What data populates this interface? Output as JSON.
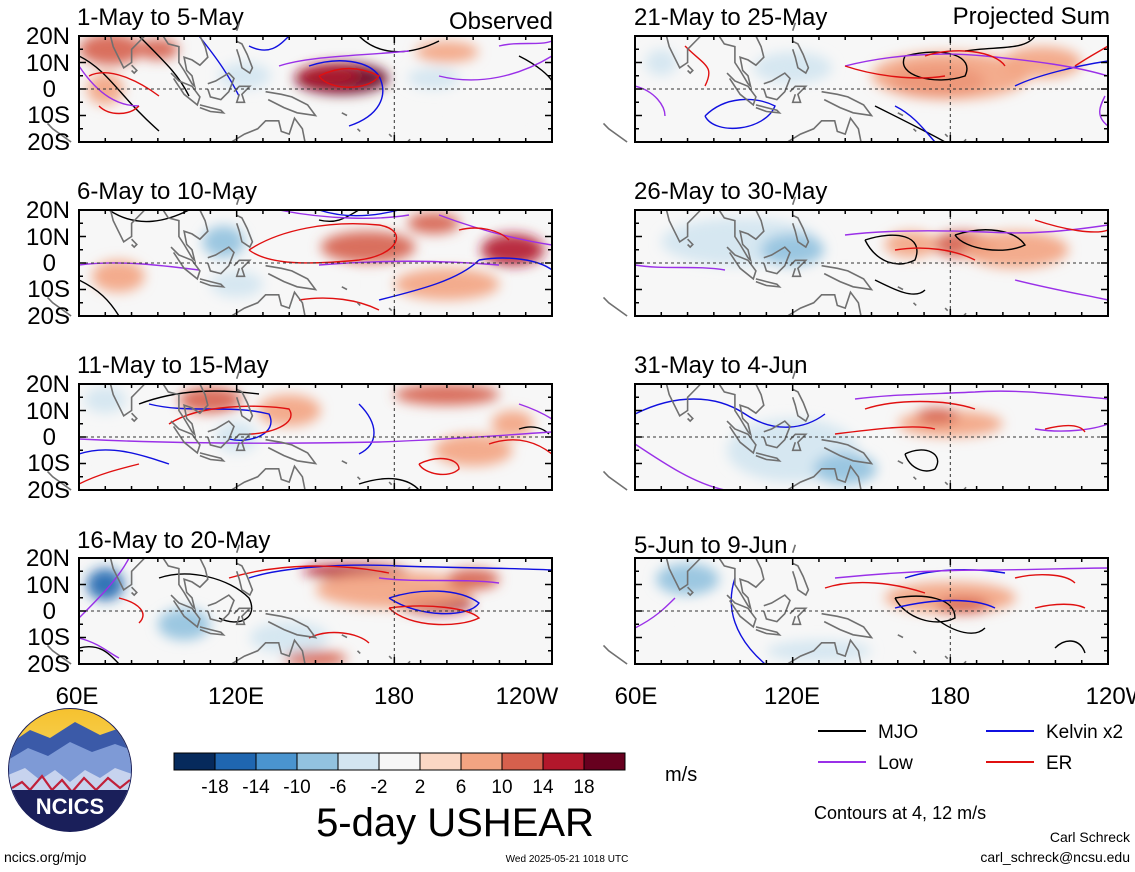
{
  "header": {
    "observed_label": "Observed",
    "projected_label": "Projected Sum"
  },
  "panels": [
    {
      "id": "p1",
      "title": "1-May to 5-May",
      "blobs": [
        {
          "x": 160,
          "y": 4,
          "rx": 18,
          "ry": 6,
          "v": 18
        },
        {
          "x": 155,
          "y": 5,
          "rx": 12,
          "ry": 4,
          "v": 14
        },
        {
          "x": 72,
          "y": 15,
          "rx": 12,
          "ry": 6,
          "v": 10
        },
        {
          "x": 90,
          "y": 15,
          "rx": 8,
          "ry": 4,
          "v": 10
        },
        {
          "x": 70,
          "y": 0,
          "rx": 7,
          "ry": 6,
          "v": 6
        },
        {
          "x": 123,
          "y": 5,
          "rx": 10,
          "ry": 5,
          "v": -6
        },
        {
          "x": 195,
          "y": 4,
          "rx": 10,
          "ry": 4,
          "v": -6
        },
        {
          "x": 215,
          "y": -8,
          "rx": 12,
          "ry": 4,
          "v": -2
        },
        {
          "x": 200,
          "y": 14,
          "rx": 12,
          "ry": 4,
          "v": 6
        }
      ]
    },
    {
      "id": "p2",
      "title": "6-May to 10-May",
      "blobs": [
        {
          "x": 170,
          "y": 6,
          "rx": 18,
          "ry": 6,
          "v": 10
        },
        {
          "x": 225,
          "y": 5,
          "rx": 12,
          "ry": 6,
          "v": 14
        },
        {
          "x": 195,
          "y": 15,
          "rx": 10,
          "ry": 4,
          "v": 10
        },
        {
          "x": 200,
          "y": -8,
          "rx": 20,
          "ry": 6,
          "v": 6
        },
        {
          "x": 115,
          "y": 8,
          "rx": 8,
          "ry": 6,
          "v": -10
        },
        {
          "x": 120,
          "y": -8,
          "rx": 10,
          "ry": 5,
          "v": -6
        },
        {
          "x": 150,
          "y": -8,
          "rx": 12,
          "ry": 5,
          "v": -2
        },
        {
          "x": 75,
          "y": -5,
          "rx": 10,
          "ry": 6,
          "v": 6
        }
      ]
    },
    {
      "id": "p3",
      "title": "11-May to 15-May",
      "blobs": [
        {
          "x": 110,
          "y": 14,
          "rx": 12,
          "ry": 5,
          "v": 10
        },
        {
          "x": 140,
          "y": 10,
          "rx": 12,
          "ry": 6,
          "v": 6
        },
        {
          "x": 200,
          "y": 16,
          "rx": 20,
          "ry": 4,
          "v": 10
        },
        {
          "x": 70,
          "y": 14,
          "rx": 8,
          "ry": 5,
          "v": -6
        },
        {
          "x": 120,
          "y": 0,
          "rx": 8,
          "ry": 6,
          "v": -6
        },
        {
          "x": 210,
          "y": -5,
          "rx": 15,
          "ry": 6,
          "v": 6
        },
        {
          "x": 225,
          "y": 5,
          "rx": 8,
          "ry": 5,
          "v": 6
        },
        {
          "x": 80,
          "y": -10,
          "rx": 10,
          "ry": 6,
          "v": -2
        }
      ]
    },
    {
      "id": "p4",
      "title": "16-May to 20-May",
      "blobs": [
        {
          "x": 70,
          "y": 10,
          "rx": 7,
          "ry": 6,
          "v": -18
        },
        {
          "x": 100,
          "y": -5,
          "rx": 10,
          "ry": 6,
          "v": -10
        },
        {
          "x": 140,
          "y": -10,
          "rx": 15,
          "ry": 6,
          "v": -6
        },
        {
          "x": 165,
          "y": 15,
          "rx": 20,
          "ry": 3,
          "v": 14
        },
        {
          "x": 195,
          "y": 3,
          "rx": 15,
          "ry": 4,
          "v": 14
        },
        {
          "x": 180,
          "y": 8,
          "rx": 30,
          "ry": 7,
          "v": 6
        },
        {
          "x": 210,
          "y": 12,
          "rx": 10,
          "ry": 4,
          "v": 10
        },
        {
          "x": 150,
          "y": -18,
          "rx": 12,
          "ry": 3,
          "v": 10
        }
      ]
    },
    {
      "id": "p5",
      "title": "21-May to 25-May",
      "blobs": [
        {
          "x": 175,
          "y": 3,
          "rx": 18,
          "ry": 6,
          "v": 14
        },
        {
          "x": 180,
          "y": 5,
          "rx": 30,
          "ry": 9,
          "v": 6
        },
        {
          "x": 215,
          "y": 10,
          "rx": 15,
          "ry": 6,
          "v": 6
        },
        {
          "x": 120,
          "y": 8,
          "rx": 15,
          "ry": 6,
          "v": -6
        },
        {
          "x": 100,
          "y": -5,
          "rx": 15,
          "ry": 6,
          "v": -2
        },
        {
          "x": 70,
          "y": 10,
          "rx": 6,
          "ry": 5,
          "v": -6
        }
      ]
    },
    {
      "id": "p6",
      "title": "26-May to 30-May",
      "blobs": [
        {
          "x": 100,
          "y": 8,
          "rx": 30,
          "ry": 9,
          "v": -6
        },
        {
          "x": 120,
          "y": 5,
          "rx": 12,
          "ry": 6,
          "v": -10
        },
        {
          "x": 185,
          "y": 7,
          "rx": 12,
          "ry": 5,
          "v": 10
        },
        {
          "x": 205,
          "y": 5,
          "rx": 20,
          "ry": 7,
          "v": 6
        },
        {
          "x": 165,
          "y": 7,
          "rx": 10,
          "ry": 5,
          "v": 6
        },
        {
          "x": 140,
          "y": -10,
          "rx": 18,
          "ry": 6,
          "v": -2
        }
      ]
    },
    {
      "id": "p7",
      "title": "31-May to 4-Jun",
      "blobs": [
        {
          "x": 120,
          "y": -5,
          "rx": 25,
          "ry": 12,
          "v": -6
        },
        {
          "x": 140,
          "y": -12,
          "rx": 12,
          "ry": 6,
          "v": -10
        },
        {
          "x": 180,
          "y": 5,
          "rx": 20,
          "ry": 5,
          "v": 6
        },
        {
          "x": 175,
          "y": 8,
          "rx": 8,
          "ry": 3,
          "v": 10
        },
        {
          "x": 80,
          "y": 10,
          "rx": 12,
          "ry": 6,
          "v": -2
        }
      ]
    },
    {
      "id": "p8",
      "title": "5-Jun to 9-Jun",
      "blobs": [
        {
          "x": 80,
          "y": 12,
          "rx": 12,
          "ry": 6,
          "v": -10
        },
        {
          "x": 130,
          "y": -15,
          "rx": 20,
          "ry": 4,
          "v": -6
        },
        {
          "x": 180,
          "y": 5,
          "rx": 25,
          "ry": 6,
          "v": 6
        },
        {
          "x": 185,
          "y": 2,
          "rx": 10,
          "ry": 3,
          "v": 10
        },
        {
          "x": 100,
          "y": -5,
          "rx": 20,
          "ry": 8,
          "v": -2
        }
      ]
    }
  ],
  "axes": {
    "lat_ticks": [
      "20N",
      "10N",
      "0",
      "10S",
      "20S"
    ],
    "lon_ticks": [
      "60E",
      "120E",
      "180",
      "120W"
    ]
  },
  "colorbar": {
    "tick_labels": [
      "-18",
      "-14",
      "-10",
      "-6",
      "-2",
      "2",
      "6",
      "10",
      "14",
      "18"
    ],
    "colors": [
      "#062a5c",
      "#1f66b0",
      "#4a94cf",
      "#92c2df",
      "#d3e5f1",
      "#f7f7f7",
      "#fbd7c4",
      "#f3a482",
      "#d6604d",
      "#b2172b",
      "#67001f"
    ],
    "unit": "m/s"
  },
  "legend": {
    "items": [
      {
        "label": "MJO",
        "color": "#000000"
      },
      {
        "label": "Kelvin x2",
        "color": "#1010e0"
      },
      {
        "label": "Low",
        "color": "#9a30e8"
      },
      {
        "label": "ER",
        "color": "#e01010"
      }
    ],
    "contour_note": "Contours at 4, 12 m/s"
  },
  "main_title": "5-day USHEAR",
  "logo": {
    "text": "NCICS"
  },
  "footer": {
    "site": "ncics.org/mjo",
    "timestamp": "Wed 2025-05-21 1018 UTC",
    "author": "Carl Schreck",
    "email": "carl_schreck@ncsu.edu"
  }
}
